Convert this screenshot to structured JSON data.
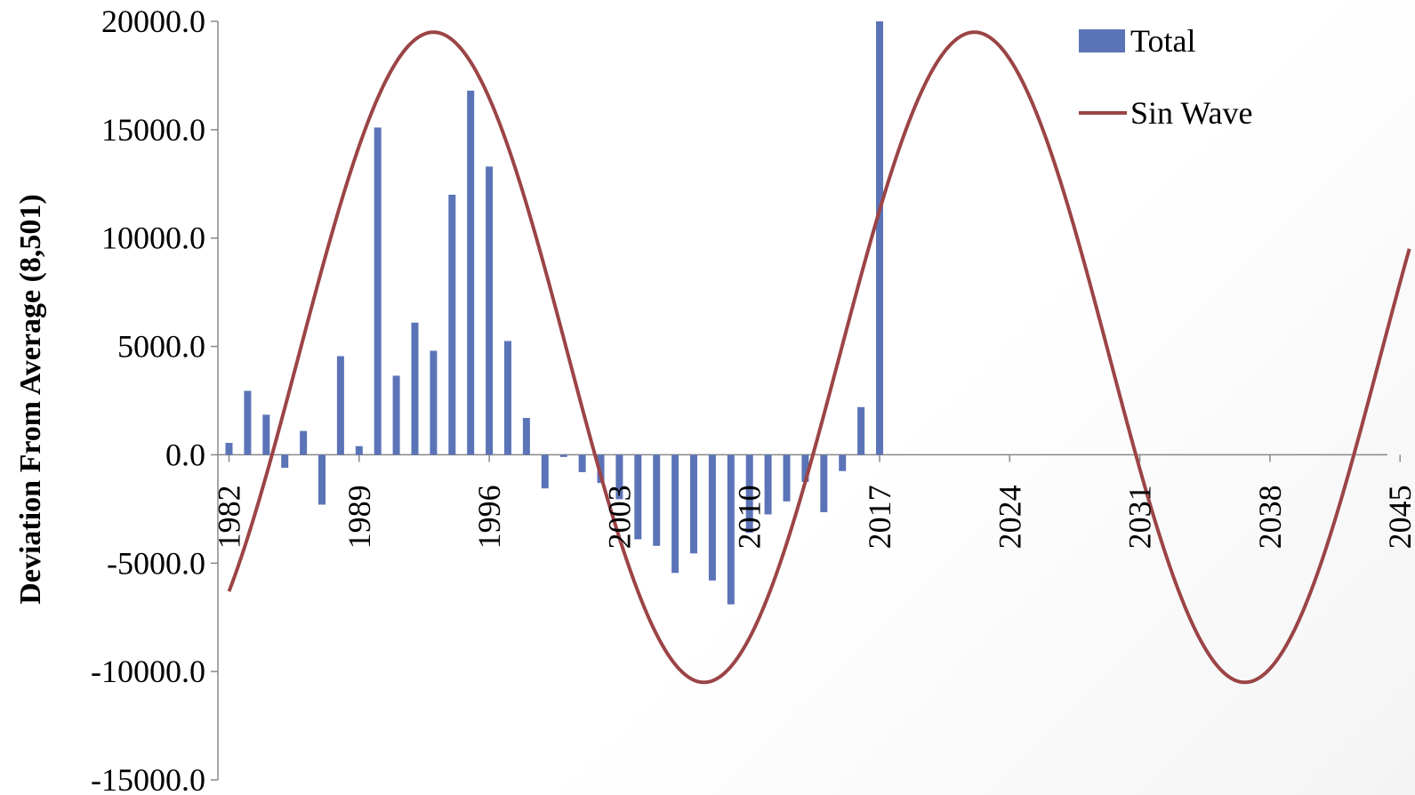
{
  "chart_data": {
    "type": "bar",
    "title": "",
    "xlabel": "",
    "ylabel": "Deviation From Average (8,501)",
    "ylim": [
      -15000,
      20000
    ],
    "y_ticks": [
      "20000.0",
      "15000.0",
      "10000.0",
      "5000.0",
      "0.0",
      "-5000.0",
      "-10000.0",
      "-15000.0"
    ],
    "y_tick_values": [
      20000,
      15000,
      10000,
      5000,
      0,
      -5000,
      -10000,
      -15000
    ],
    "x_range": [
      1982,
      2045
    ],
    "x_ticks": [
      "1982",
      "1989",
      "1996",
      "2003",
      "2010",
      "2017",
      "2024",
      "2031",
      "2038",
      "2045"
    ],
    "x_tick_values": [
      1982,
      1989,
      1996,
      2003,
      2010,
      2017,
      2024,
      2031,
      2038,
      2045
    ],
    "legend_position": "top-right",
    "grid": false,
    "series": [
      {
        "name": "Total",
        "type": "bar",
        "color": "#5B74B8",
        "x": [
          1982,
          1983,
          1984,
          1985,
          1986,
          1987,
          1988,
          1989,
          1990,
          1991,
          1992,
          1993,
          1994,
          1995,
          1996,
          1997,
          1998,
          1999,
          2000,
          2001,
          2002,
          2003,
          2004,
          2005,
          2006,
          2007,
          2008,
          2009,
          2010,
          2011,
          2012,
          2013,
          2014,
          2015,
          2016,
          2017
        ],
        "values": [
          550,
          2950,
          1850,
          -600,
          1100,
          -2300,
          4550,
          400,
          15100,
          3650,
          6100,
          4800,
          12000,
          16800,
          13300,
          5250,
          1700,
          -1550,
          -100,
          -800,
          -1300,
          -2050,
          -3900,
          -4200,
          -5450,
          -4550,
          -5800,
          -6900,
          -3600,
          -2750,
          -2150,
          -1250,
          -2650,
          -750,
          2200,
          20000
        ]
      },
      {
        "name": "Sin Wave",
        "type": "line",
        "color": "#9B4446",
        "midline": 4500,
        "amplitude": 15000,
        "period_years": 29.1,
        "peak_years": [
          1993.0,
          2022.2
        ],
        "trough_years": [
          2007.6,
          2036.7
        ]
      }
    ]
  }
}
